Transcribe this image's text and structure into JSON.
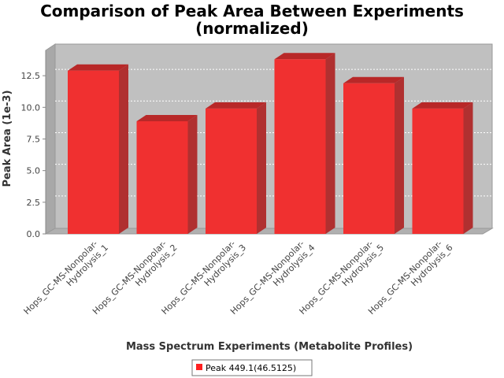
{
  "chart_data": {
    "type": "bar",
    "title_lines": [
      "Comparison of Peak Area Between Experiments",
      "(normalized)"
    ],
    "xlabel": "Mass Spectrum Experiments (Metabolite Profiles)",
    "ylabel": "Peak Area (1e-3)",
    "categories": [
      [
        "Hops_GC-MS-Nonpolar-",
        "Hydrolysis_1"
      ],
      [
        "Hops_GC-MS-Nonpolar-",
        "Hydrolysis_2"
      ],
      [
        "Hops_GC-MS-Nonpolar-",
        "Hydrolysis_3"
      ],
      [
        "Hops_GC-MS-Nonpolar-",
        "Hydrolysis_4"
      ],
      [
        "Hops_GC-MS-Nonpolar-",
        "Hydrolysis_5"
      ],
      [
        "Hops_GC-MS-Nonpolar-",
        "Hydrolysis_6"
      ]
    ],
    "series": [
      {
        "name": "Peak 449.1(46.5125)",
        "color": "#ff2020",
        "values": [
          12.9,
          8.9,
          9.9,
          13.8,
          11.9,
          9.9
        ]
      }
    ],
    "yticks": [
      "0.0",
      "2.5",
      "5.0",
      "7.5",
      "10.0",
      "12.5"
    ],
    "tick_values": [
      0,
      2.5,
      5,
      7.5,
      10,
      12.5
    ],
    "ylim": [
      0,
      14.5
    ],
    "grid": true,
    "legend_position": "bottom"
  }
}
